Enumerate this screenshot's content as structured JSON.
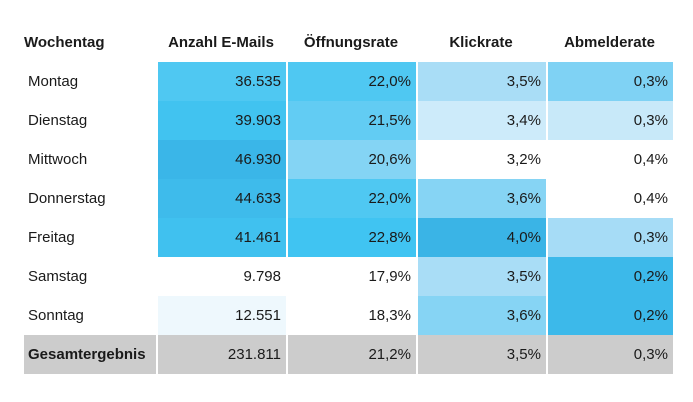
{
  "headers": [
    "Wochentag",
    "Anzahl E-Mails",
    "Öffnungsrate",
    "Klickrate",
    "Abmelderate"
  ],
  "rows": [
    {
      "day": "Montag",
      "emails": "36.535",
      "open": "22,0%",
      "click": "3,5%",
      "unsub": "0,3%",
      "colors": [
        "#4fc8f2",
        "#4fc8f2",
        "#a9ddf6",
        "#7fd2f4"
      ]
    },
    {
      "day": "Dienstag",
      "emails": "39.903",
      "open": "21,5%",
      "click": "3,4%",
      "unsub": "0,3%",
      "colors": [
        "#41c3f0",
        "#62ccf3",
        "#cdebfa",
        "#c8e9f9"
      ]
    },
    {
      "day": "Mittwoch",
      "emails": "46.930",
      "open": "20,6%",
      "click": "3,2%",
      "unsub": "0,4%",
      "colors": [
        "#3ab6e8",
        "#84d4f4",
        "#ffffff",
        "#ffffff"
      ]
    },
    {
      "day": "Donnerstag",
      "emails": "44.633",
      "open": "22,0%",
      "click": "3,6%",
      "unsub": "0,4%",
      "colors": [
        "#3ebbeb",
        "#4fc8f2",
        "#86d4f4",
        "#ffffff"
      ]
    },
    {
      "day": "Freitag",
      "emails": "41.461",
      "open": "22,8%",
      "click": "4,0%",
      "unsub": "0,3%",
      "colors": [
        "#40c1ef",
        "#40c4f2",
        "#3ab4e6",
        "#a6dcf6"
      ]
    },
    {
      "day": "Samstag",
      "emails": "9.798",
      "open": "17,9%",
      "click": "3,5%",
      "unsub": "0,2%",
      "colors": [
        "#ffffff",
        "#ffffff",
        "#a9ddf6",
        "#3cb9ea"
      ]
    },
    {
      "day": "Sonntag",
      "emails": "12.551",
      "open": "18,3%",
      "click": "3,6%",
      "unsub": "0,2%",
      "colors": [
        "#eef8fd",
        "#ffffff",
        "#86d4f4",
        "#3cb9ea"
      ]
    }
  ],
  "total": {
    "day": "Gesamtergebnis",
    "emails": "231.811",
    "open": "21,2%",
    "click": "3,5%",
    "unsub": "0,3%"
  }
}
